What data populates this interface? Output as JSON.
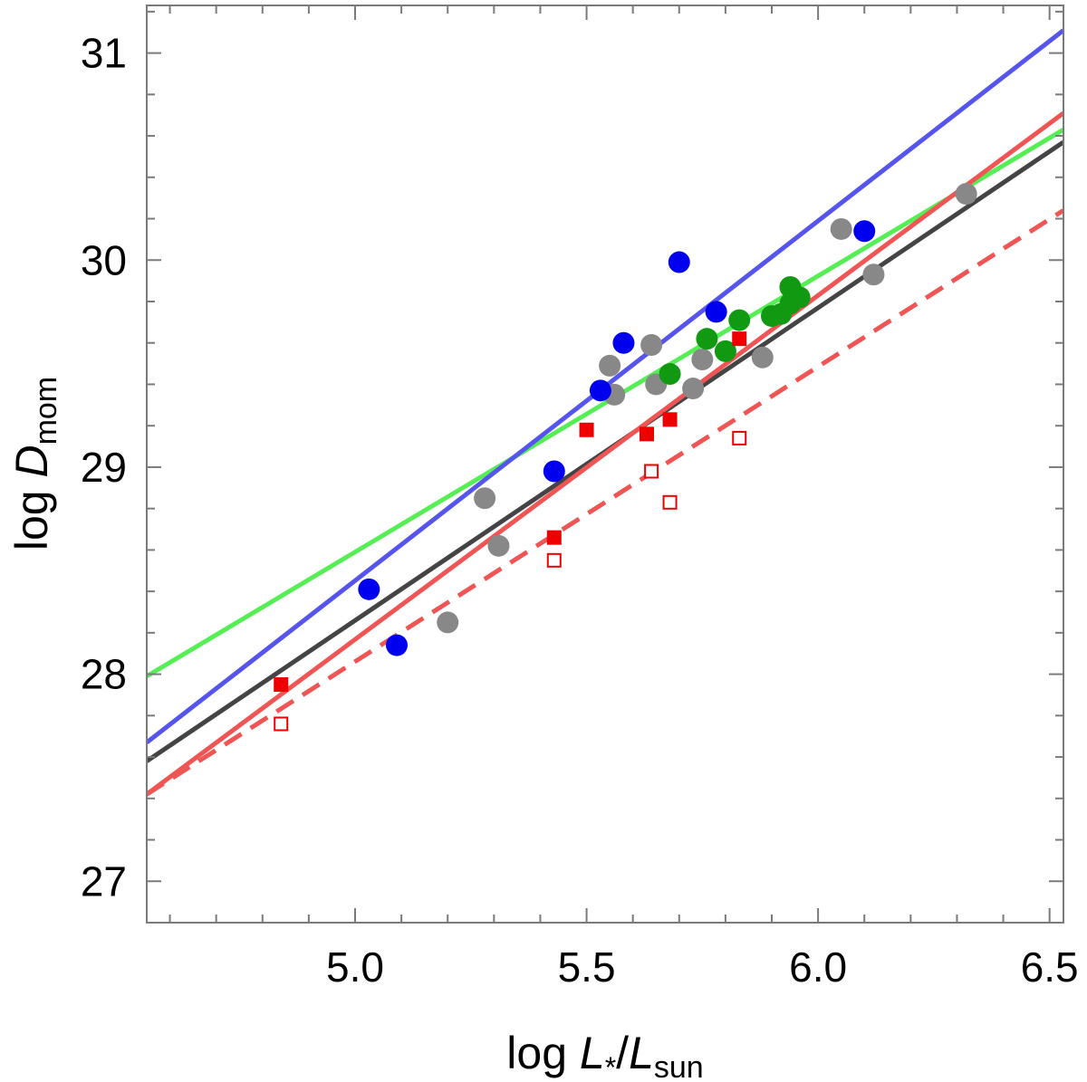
{
  "chart_data": {
    "type": "scatter",
    "title": "",
    "xlabel": {
      "prefix": "log ",
      "L": "L",
      "sub_star": "*",
      "slash": "/",
      "L2": "L",
      "sub_sun": "sun"
    },
    "ylabel": {
      "prefix": "log ",
      "D": "D",
      "sub": "mom"
    },
    "xlim": [
      4.55,
      6.53
    ],
    "ylim": [
      26.8,
      31.23
    ],
    "x_ticks": [
      {
        "value": 5.0,
        "label": "5.0"
      },
      {
        "value": 5.5,
        "label": "5.5"
      },
      {
        "value": 6.0,
        "label": "6.0"
      },
      {
        "value": 6.5,
        "label": "6.5"
      }
    ],
    "y_ticks": [
      {
        "value": 27,
        "label": "27"
      },
      {
        "value": 28,
        "label": "28"
      },
      {
        "value": 29,
        "label": "29"
      },
      {
        "value": 30,
        "label": "30"
      },
      {
        "value": 31,
        "label": "31"
      }
    ],
    "x_minor_step": 0.1,
    "y_minor_step": 0.2,
    "grid": false,
    "lines": [
      {
        "name": "green fit",
        "color": "#55ee55",
        "dashed": false,
        "points": [
          [
            4.55,
            27.99
          ],
          [
            6.53,
            30.63
          ]
        ]
      },
      {
        "name": "blue fit",
        "color": "#5555ee",
        "dashed": false,
        "points": [
          [
            4.55,
            27.67
          ],
          [
            6.53,
            31.11
          ]
        ]
      },
      {
        "name": "black fit",
        "color": "#444444",
        "dashed": false,
        "points": [
          [
            4.55,
            27.58
          ],
          [
            6.53,
            30.57
          ]
        ]
      },
      {
        "name": "red fit",
        "color": "#f05555",
        "dashed": false,
        "points": [
          [
            4.55,
            27.42
          ],
          [
            6.53,
            30.71
          ]
        ]
      },
      {
        "name": "red dashed fit",
        "color": "#f05555",
        "dashed": true,
        "points": [
          [
            4.55,
            27.42
          ],
          [
            6.53,
            30.24
          ]
        ]
      }
    ],
    "series": [
      {
        "name": "grey",
        "marker": "circle",
        "color": "#888888",
        "filled": true,
        "points": [
          [
            5.2,
            28.25
          ],
          [
            5.28,
            28.85
          ],
          [
            5.31,
            28.62
          ],
          [
            5.55,
            29.49
          ],
          [
            5.56,
            29.35
          ],
          [
            5.64,
            29.59
          ],
          [
            5.65,
            29.4
          ],
          [
            5.73,
            29.38
          ],
          [
            5.75,
            29.52
          ],
          [
            5.88,
            29.53
          ],
          [
            6.05,
            30.15
          ],
          [
            6.12,
            29.93
          ],
          [
            6.32,
            30.32
          ]
        ]
      },
      {
        "name": "blue",
        "marker": "circle",
        "color": "#0000ee",
        "filled": true,
        "points": [
          [
            5.03,
            28.41
          ],
          [
            5.09,
            28.14
          ],
          [
            5.43,
            28.98
          ],
          [
            5.53,
            29.37
          ],
          [
            5.58,
            29.6
          ],
          [
            5.7,
            29.99
          ],
          [
            5.78,
            29.75
          ],
          [
            6.1,
            30.14
          ]
        ]
      },
      {
        "name": "green",
        "marker": "circle",
        "color": "#119911",
        "filled": true,
        "points": [
          [
            5.68,
            29.45
          ],
          [
            5.76,
            29.62
          ],
          [
            5.8,
            29.56
          ],
          [
            5.83,
            29.71
          ],
          [
            5.9,
            29.73
          ],
          [
            5.92,
            29.74
          ],
          [
            5.94,
            29.87
          ],
          [
            5.94,
            29.79
          ],
          [
            5.96,
            29.82
          ]
        ]
      },
      {
        "name": "red filled",
        "marker": "square",
        "color": "#ee0000",
        "filled": true,
        "points": [
          [
            4.84,
            27.95
          ],
          [
            5.43,
            28.66
          ],
          [
            5.5,
            29.18
          ],
          [
            5.63,
            29.16
          ],
          [
            5.68,
            29.23
          ],
          [
            5.83,
            29.62
          ]
        ]
      },
      {
        "name": "red open",
        "marker": "square",
        "color": "#ee0000",
        "filled": false,
        "points": [
          [
            4.84,
            27.76
          ],
          [
            5.43,
            28.55
          ],
          [
            5.64,
            28.98
          ],
          [
            5.68,
            28.83
          ],
          [
            5.83,
            29.14
          ]
        ]
      }
    ]
  }
}
